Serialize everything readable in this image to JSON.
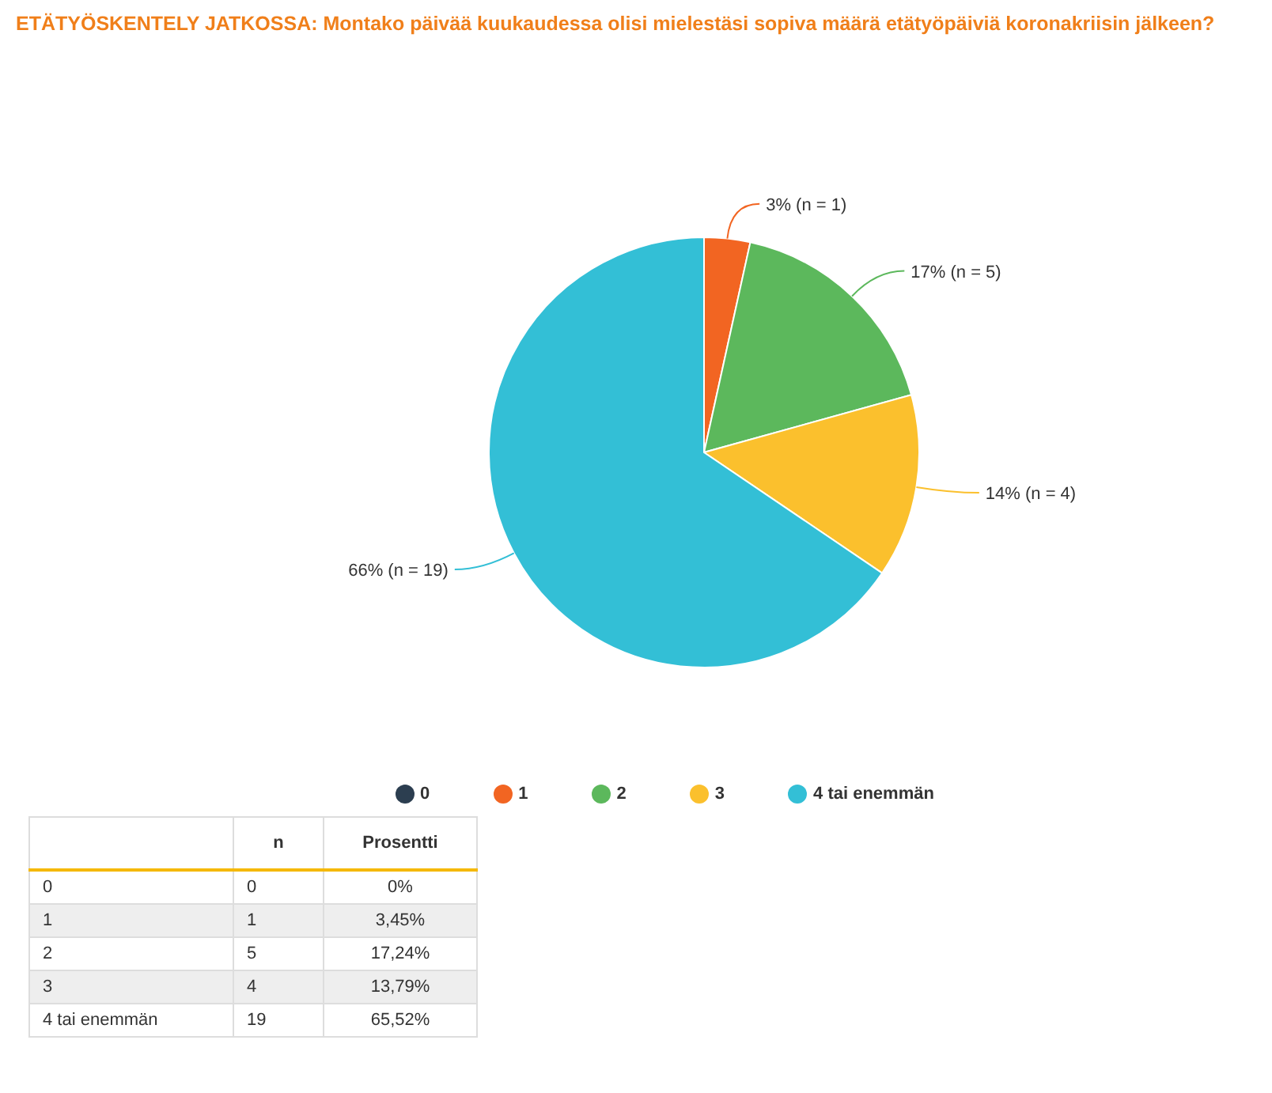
{
  "chart_data": {
    "type": "pie",
    "title": "ETÄTYÖSKENTELY JATKOSSA: Montako päivää kuukaudessa olisi mielestäsi sopiva määrä etätyöpäiviä koronakriisin jälkeen?",
    "categories": [
      "0",
      "1",
      "2",
      "3",
      "4 tai enemmän"
    ],
    "values": [
      0,
      3.45,
      17.24,
      13.79,
      65.52
    ],
    "colors": [
      "#2c3e50",
      "#f26522",
      "#5cb85c",
      "#fbc02d",
      "#33bfd6"
    ],
    "value_labels": [
      null,
      "3% (n = 1)",
      "17% (n = 5)",
      "14% (n = 4)",
      "66% (n = 19)"
    ],
    "legend": "bottom",
    "annotations": [
      "n",
      "Prosentti",
      "0",
      "0%",
      "1",
      "3,45%",
      "5",
      "17,24%",
      "4",
      "13,79%",
      "19",
      "65,52%"
    ]
  }
}
